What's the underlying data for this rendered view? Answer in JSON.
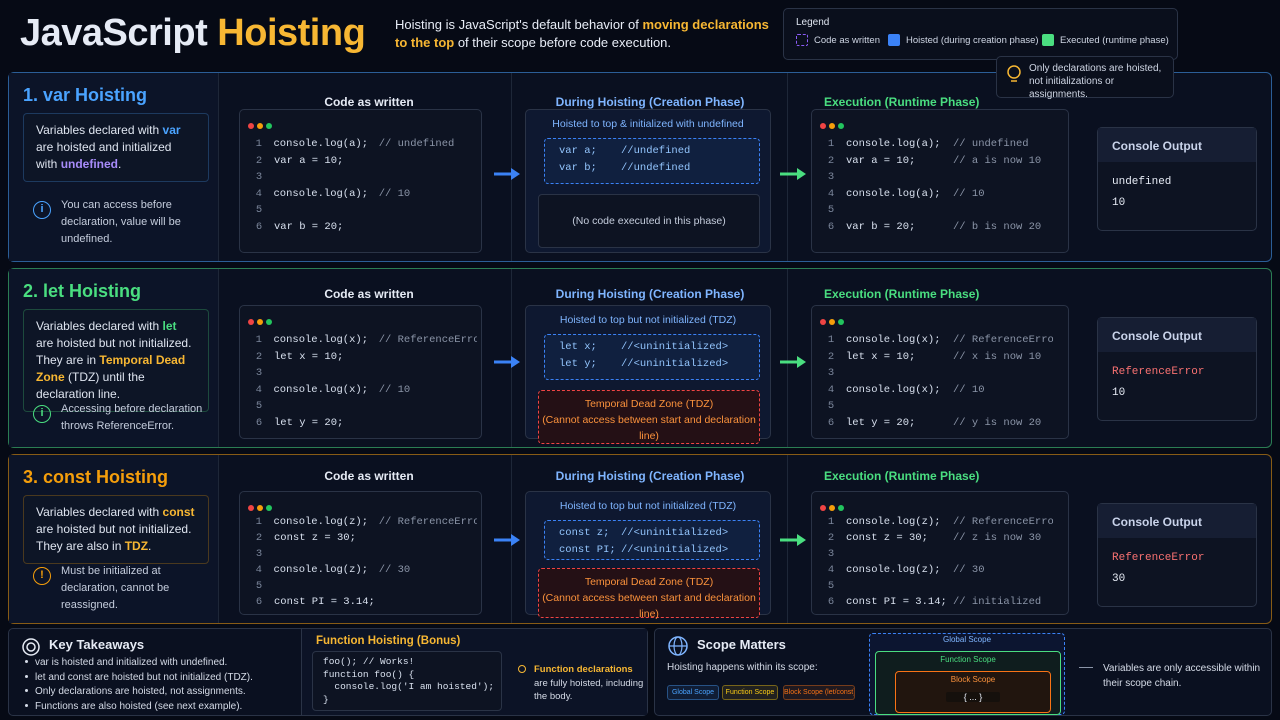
{
  "header": {
    "title": [
      "JavaScript",
      "Hoisting"
    ],
    "description": [
      {
        "text": "Hoisting is JavaScript's default behavior of "
      },
      {
        "text": "moving declarations to the top",
        "color": "#f7b733"
      },
      {
        "text": " of their scope before code execution."
      }
    ]
  },
  "legend": {
    "title": "Legend",
    "items": [
      {
        "label": "Code as written",
        "color": "#8b5cf6",
        "dashed": true
      },
      {
        "label": "Hoisted (during creation phase)",
        "color": "#3b82f6"
      },
      {
        "label": "Executed (runtime phase)",
        "color": "#4ade80"
      }
    ]
  },
  "note": "Only declarations are hoisted, not initializations or assignments.",
  "sections": [
    {
      "title": "1. var Hoisting",
      "color": "#4aa3ff",
      "description": [
        {
          "text": "Variables declared with "
        },
        {
          "text": "var",
          "color": "#4aa3ff"
        },
        {
          "text": " are hoisted and initialized with "
        },
        {
          "text": "undefined",
          "color": "#a78bfa"
        },
        {
          "text": "."
        }
      ],
      "tip": "You can access before declaration, value will be undefined.",
      "tip_icon": "i",
      "code_title": "Code as written",
      "code": [
        {
          "n": 1,
          "code": "console.log(a);",
          "comment": "// undefined"
        },
        {
          "n": 2,
          "code": "var a = 10;"
        },
        {
          "n": 3
        },
        {
          "n": 4,
          "code": "console.log(a);",
          "comment": "// 10"
        },
        {
          "n": 5
        },
        {
          "n": 6,
          "code": "var b = 20;"
        }
      ],
      "hoist_title": "During Hoisting (Creation Phase)",
      "hoist_subtitle": "Hoisted to top & initialized with undefined",
      "hoisted": [
        {
          "code": "var a;",
          "comment": "//undefined"
        },
        {
          "code": "var b;",
          "comment": "//undefined"
        }
      ],
      "phase_box": {
        "kind": "note",
        "lines": [
          "(No code executed in this phase)"
        ]
      },
      "exec_title": "Execution (Runtime Phase)",
      "exec": [
        {
          "n": 1,
          "code": "console.log(a);",
          "comment": "// undefined"
        },
        {
          "n": 2,
          "code": "var a = 10;",
          "comment": "// a is now 10"
        },
        {
          "n": 3
        },
        {
          "n": 4,
          "code": "console.log(a);",
          "comment": "// 10"
        },
        {
          "n": 5
        },
        {
          "n": 6,
          "code": "var b = 20;",
          "comment": "// b is now 20"
        }
      ],
      "console_title": "Console Output",
      "console": [
        {
          "text": "undefined"
        },
        {
          "text": "10"
        }
      ]
    },
    {
      "title": "2. let Hoisting",
      "color": "#4ade80",
      "description": [
        {
          "text": "Variables declared with "
        },
        {
          "text": "let",
          "color": "#4ade80"
        },
        {
          "text": " are hoisted but not initialized. They are in "
        },
        {
          "text": "Temporal Dead Zone",
          "color": "#f7b733"
        },
        {
          "text": " (TDZ) until the declaration line."
        }
      ],
      "tip": "Accessing before declaration throws ReferenceError.",
      "tip_icon": "i",
      "code_title": "Code as written",
      "code": [
        {
          "n": 1,
          "code": "console.log(x);",
          "comment": "// ReferenceError"
        },
        {
          "n": 2,
          "code": "let x = 10;"
        },
        {
          "n": 3
        },
        {
          "n": 4,
          "code": "console.log(x);",
          "comment": "// 10"
        },
        {
          "n": 5
        },
        {
          "n": 6,
          "code": "let y = 20;"
        }
      ],
      "hoist_title": "During Hoisting (Creation Phase)",
      "hoist_subtitle": "Hoisted to top but not initialized (TDZ)",
      "hoisted": [
        {
          "code": "let x;",
          "comment": "//<uninitialized>"
        },
        {
          "code": "let y;",
          "comment": "//<uninitialized>"
        }
      ],
      "phase_box": {
        "kind": "tdz",
        "lines": [
          "Temporal Dead Zone (TDZ)",
          "(Cannot access between start and declaration line)"
        ]
      },
      "exec_title": "Execution (Runtime Phase)",
      "exec": [
        {
          "n": 1,
          "code": "console.log(x);",
          "comment": "// ReferenceError"
        },
        {
          "n": 2,
          "code": "let x = 10;",
          "comment": "// x is now 10"
        },
        {
          "n": 3
        },
        {
          "n": 4,
          "code": "console.log(x);",
          "comment": "// 10"
        },
        {
          "n": 5
        },
        {
          "n": 6,
          "code": "let y = 20;",
          "comment": "// y is now 20"
        }
      ],
      "console_title": "Console Output",
      "console": [
        {
          "text": "ReferenceError",
          "color": "#f87171"
        },
        {
          "text": "10"
        }
      ]
    },
    {
      "title": "3. const Hoisting",
      "color": "#f59e0b",
      "description": [
        {
          "text": "Variables declared with "
        },
        {
          "text": "const",
          "color": "#f7b733"
        },
        {
          "text": " are hoisted but not initialized. They are also in "
        },
        {
          "text": "TDZ",
          "color": "#f7b733"
        },
        {
          "text": "."
        }
      ],
      "tip": "Must be initialized at declaration, cannot be reassigned.",
      "tip_icon": "!",
      "code_title": "Code as written",
      "code": [
        {
          "n": 1,
          "code": "console.log(z);",
          "comment": "// ReferenceError"
        },
        {
          "n": 2,
          "code": "const z = 30;"
        },
        {
          "n": 3
        },
        {
          "n": 4,
          "code": "console.log(z);",
          "comment": "// 30"
        },
        {
          "n": 5
        },
        {
          "n": 6,
          "code": "const PI = 3.14;"
        }
      ],
      "hoist_title": "During Hoisting (Creation Phase)",
      "hoist_subtitle": "Hoisted to top but not initialized (TDZ)",
      "hoisted": [
        {
          "code": "const z;",
          "comment": "//<uninitialized>"
        },
        {
          "code": "const PI;",
          "comment": "//<uninitialized>"
        }
      ],
      "phase_box": {
        "kind": "tdz",
        "lines": [
          "Temporal Dead Zone (TDZ)",
          "(Cannot access between start and declaration line)"
        ]
      },
      "exec_title": "Execution (Runtime Phase)",
      "exec": [
        {
          "n": 1,
          "code": "console.log(z);",
          "comment": "// ReferenceError"
        },
        {
          "n": 2,
          "code": "const z = 30;",
          "comment": "// z is now 30"
        },
        {
          "n": 3
        },
        {
          "n": 4,
          "code": "console.log(z);",
          "comment": "// 30"
        },
        {
          "n": 5
        },
        {
          "n": 6,
          "code": "const PI = 3.14;",
          "comment": "// initialized"
        }
      ],
      "console_title": "Console Output",
      "console": [
        {
          "text": "ReferenceError",
          "color": "#f87171"
        },
        {
          "text": "30"
        }
      ]
    }
  ],
  "takeaways": {
    "title": "Key Takeaways",
    "items": [
      "var is hoisted and initialized with undefined.",
      "let and const are hoisted but not initialized (TDZ).",
      "Only declarations are hoisted, not assignments.",
      "Functions are also hoisted (see next example)."
    ]
  },
  "bonus": {
    "title": "Function Hoisting (Bonus)",
    "code": [
      "foo(); // Works!",
      "function foo() {",
      "  console.log('I am hoisted');",
      "}"
    ],
    "note": [
      {
        "text": "Function declarations",
        "color": "#f7b733"
      },
      {
        "text": " are fully hoisted, including the body."
      }
    ]
  },
  "scope": {
    "title": "Scope Matters",
    "text": "Hoisting happens within its scope:",
    "tags": [
      {
        "label": "Global Scope",
        "color": "#4aa3ff"
      },
      {
        "label": "Function Scope",
        "color": "#facc15"
      },
      {
        "label": "Block Scope (let/const)",
        "color": "#f97316"
      }
    ],
    "levels": [
      "Global Scope",
      "Function Scope",
      "Block Scope"
    ],
    "block_body": "{ ... }",
    "note": "Variables are only accessible within their scope chain."
  }
}
